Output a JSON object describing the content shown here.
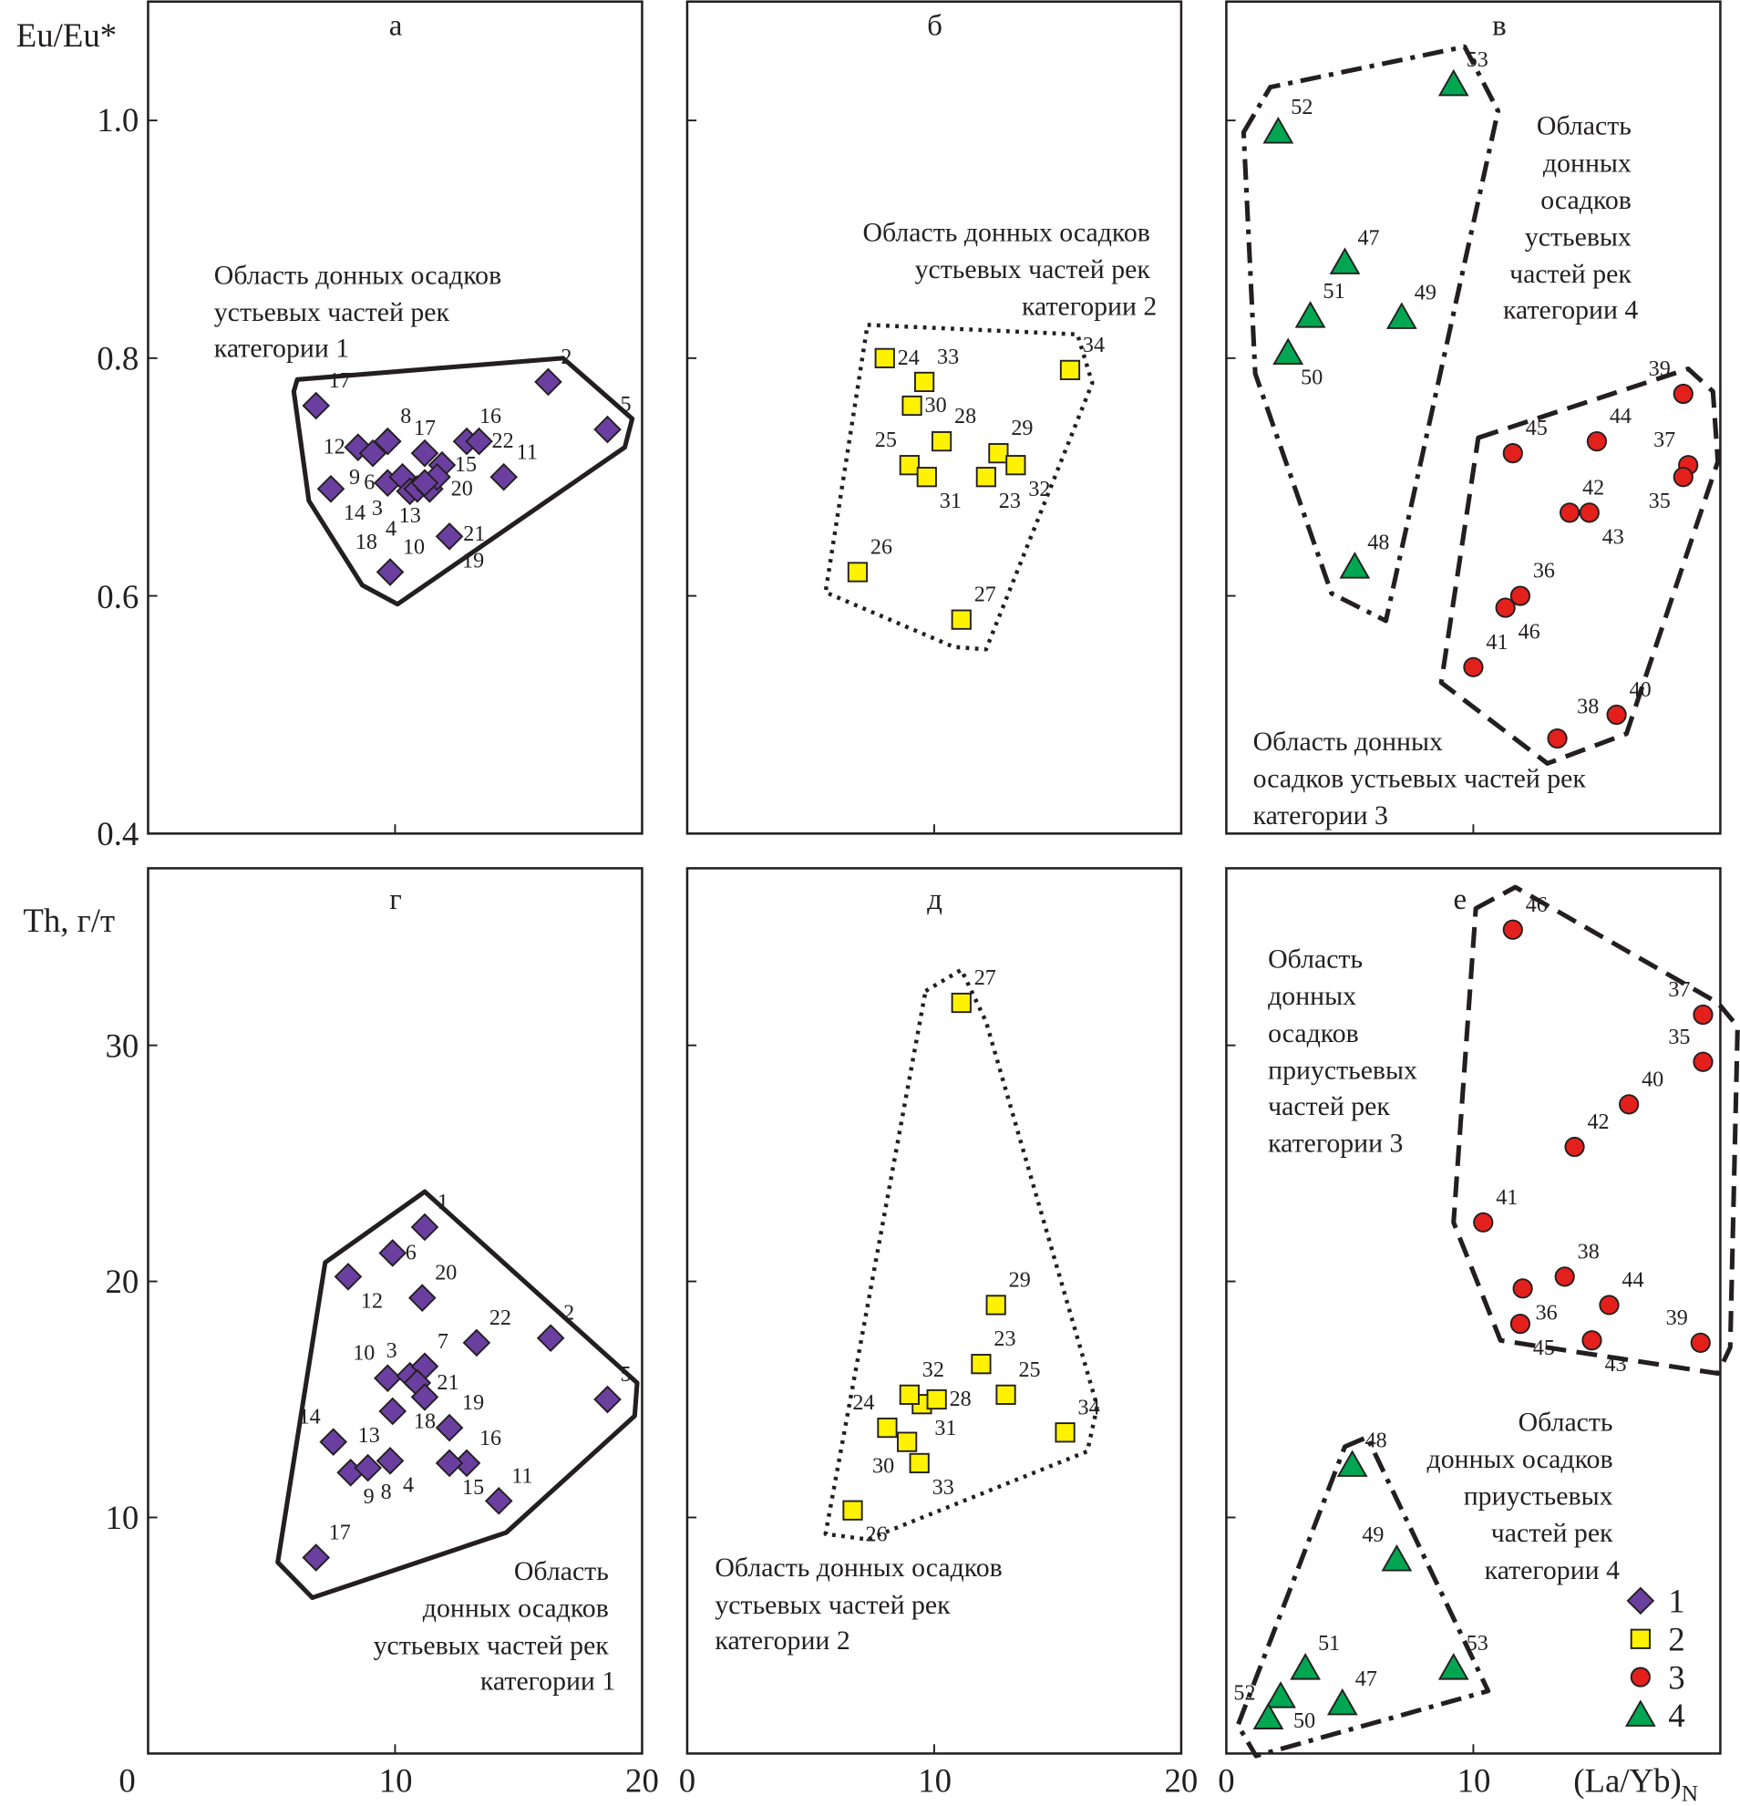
{
  "colors": {
    "cat1": "#6b3fa0",
    "cat2": "#fff200",
    "cat3": "#e3201b",
    "cat4": "#00a651",
    "outline": "#231f20"
  },
  "axes": {
    "y_top_label": "Eu/Eu*",
    "y_bottom_label": "Th, г/т",
    "x_label_main": "(La/Yb)",
    "x_label_sub": "N",
    "y_top_ticks": [
      "1.0",
      "0.8",
      "0.6",
      "0.4"
    ],
    "y_bottom_ticks": [
      "30",
      "20",
      "10"
    ],
    "x_ticks": [
      "0",
      "10",
      "20",
      "0",
      "10",
      "20",
      "0",
      "10"
    ]
  },
  "legend": [
    {
      "label": "1",
      "marker": "diamond",
      "color": "#6b3fa0"
    },
    {
      "label": "2",
      "marker": "square",
      "color": "#fff200"
    },
    {
      "label": "3",
      "marker": "circle",
      "color": "#e3201b"
    },
    {
      "label": "4",
      "marker": "triangle",
      "color": "#00a651"
    }
  ],
  "annotations": {
    "a": [
      "Область донных осадков",
      "устьевых частей рек",
      "категории 1"
    ],
    "b": [
      "Область донных осадков",
      "устьевых частей рек",
      "категории 2"
    ],
    "v_top": [
      "Область",
      "донных",
      "осадков",
      "устьевых",
      "частей рек",
      "категории 4"
    ],
    "v_bottom": [
      "Область донных",
      "осадков устьевых частей рек",
      "категории 3"
    ],
    "g": [
      "Область",
      "донных осадков",
      "устьевых частей рек",
      "категории 1"
    ],
    "d": [
      "Область донных осадков",
      "устьевых частей рек",
      "категории 2"
    ],
    "e_top": [
      "Область",
      "донных",
      "осадков",
      "приустьевых",
      "частей рек",
      "категории 3"
    ],
    "e_bottom": [
      "Область",
      "донных осадков",
      "приустьевых",
      "частей рек",
      "категории 4"
    ]
  },
  "chart_data": [
    {
      "type": "scatter",
      "panel": "а",
      "xlabel": "(La/Yb)N",
      "ylabel": "Eu/Eu*",
      "xlim": [
        0,
        20
      ],
      "ylim": [
        0.4,
        1.1
      ],
      "series": [
        {
          "name": "1",
          "marker": "diamond",
          "points": [
            {
              "id": "17",
              "x": 6.8,
              "y": 0.76
            },
            {
              "id": "2",
              "x": 16.2,
              "y": 0.78
            },
            {
              "id": "5",
              "x": 18.6,
              "y": 0.74
            },
            {
              "id": "12",
              "x": 8.5,
              "y": 0.725
            },
            {
              "id": "9",
              "x": 9.1,
              "y": 0.72
            },
            {
              "id": "8",
              "x": 9.7,
              "y": 0.73
            },
            {
              "id": "14",
              "x": 7.4,
              "y": 0.69
            },
            {
              "id": "6",
              "x": 9.7,
              "y": 0.695
            },
            {
              "id": "3",
              "x": 10.3,
              "y": 0.7
            },
            {
              "id": "13",
              "x": 10.6,
              "y": 0.688
            },
            {
              "id": "20",
              "x": 10.9,
              "y": 0.69
            },
            {
              "id": "21",
              "x": 11.4,
              "y": 0.69
            },
            {
              "id": "17",
              "x": 11.2,
              "y": 0.72
            },
            {
              "id": "15",
              "x": 11.9,
              "y": 0.71
            },
            {
              "id": "16",
              "x": 12.9,
              "y": 0.73
            },
            {
              "id": "22",
              "x": 13.4,
              "y": 0.73
            },
            {
              "id": "4",
              "x": 11.7,
              "y": 0.7
            },
            {
              "id": "18",
              "x": 11.2,
              "y": 0.695
            },
            {
              "id": "11",
              "x": 14.4,
              "y": 0.7
            },
            {
              "id": "19",
              "x": 12.2,
              "y": 0.65
            },
            {
              "id": "10",
              "x": 9.8,
              "y": 0.62
            }
          ]
        }
      ],
      "regions": [
        {
          "name": "category 1",
          "style": "solid",
          "points": [
            [
              6.04,
              0.782
            ],
            [
              16.8,
              0.8
            ],
            [
              19.6,
              0.749
            ],
            [
              19.3,
              0.725
            ],
            [
              10.1,
              0.593
            ],
            [
              8.67,
              0.609
            ],
            [
              6.51,
              0.68
            ],
            [
              5.9,
              0.772
            ]
          ]
        }
      ]
    },
    {
      "type": "scatter",
      "panel": "б",
      "xlim": [
        0,
        20
      ],
      "ylim": [
        0.4,
        1.1
      ],
      "series": [
        {
          "name": "2",
          "marker": "square",
          "points": [
            {
              "id": "24",
              "x": 8.0,
              "y": 0.8
            },
            {
              "id": "33",
              "x": 9.6,
              "y": 0.78
            },
            {
              "id": "30",
              "x": 9.1,
              "y": 0.76
            },
            {
              "id": "28",
              "x": 10.3,
              "y": 0.73
            },
            {
              "id": "29",
              "x": 12.6,
              "y": 0.72
            },
            {
              "id": "32",
              "x": 13.3,
              "y": 0.71
            },
            {
              "id": "34",
              "x": 15.5,
              "y": 0.79
            },
            {
              "id": "25",
              "x": 9.0,
              "y": 0.71
            },
            {
              "id": "31",
              "x": 9.7,
              "y": 0.7
            },
            {
              "id": "23",
              "x": 12.1,
              "y": 0.7
            },
            {
              "id": "26",
              "x": 6.9,
              "y": 0.62
            },
            {
              "id": "27",
              "x": 11.1,
              "y": 0.58
            }
          ]
        }
      ],
      "regions": [
        {
          "name": "category 2",
          "style": "dotted",
          "points": [
            [
              7.3,
              0.828
            ],
            [
              15.8,
              0.82
            ],
            [
              16.4,
              0.779
            ],
            [
              12.1,
              0.555
            ],
            [
              10.8,
              0.557
            ],
            [
              5.6,
              0.603
            ]
          ]
        }
      ]
    },
    {
      "type": "scatter",
      "panel": "в",
      "xlim": [
        0,
        20
      ],
      "ylim": [
        0.4,
        1.1
      ],
      "series": [
        {
          "name": "4",
          "marker": "triangle",
          "points": [
            {
              "id": "52",
              "x": 2.1,
              "y": 0.99
            },
            {
              "id": "53",
              "x": 9.2,
              "y": 1.03
            },
            {
              "id": "47",
              "x": 4.8,
              "y": 0.88
            },
            {
              "id": "51",
              "x": 3.4,
              "y": 0.835
            },
            {
              "id": "49",
              "x": 7.1,
              "y": 0.834
            },
            {
              "id": "50",
              "x": 2.5,
              "y": 0.804
            },
            {
              "id": "48",
              "x": 5.2,
              "y": 0.624
            }
          ]
        },
        {
          "name": "3",
          "marker": "circle",
          "points": [
            {
              "id": "39",
              "x": 18.5,
              "y": 0.77
            },
            {
              "id": "44",
              "x": 15.0,
              "y": 0.73
            },
            {
              "id": "45",
              "x": 11.6,
              "y": 0.72
            },
            {
              "id": "37",
              "x": 18.7,
              "y": 0.71
            },
            {
              "id": "35",
              "x": 18.5,
              "y": 0.7
            },
            {
              "id": "42",
              "x": 13.9,
              "y": 0.67
            },
            {
              "id": "43",
              "x": 14.7,
              "y": 0.67
            },
            {
              "id": "36",
              "x": 11.9,
              "y": 0.6
            },
            {
              "id": "46",
              "x": 11.3,
              "y": 0.59
            },
            {
              "id": "41",
              "x": 10.0,
              "y": 0.54
            },
            {
              "id": "40",
              "x": 15.8,
              "y": 0.5
            },
            {
              "id": "38",
              "x": 13.4,
              "y": 0.48
            }
          ]
        }
      ],
      "regions": [
        {
          "name": "category 4",
          "style": "dashdot",
          "points": [
            [
              0.7,
              0.99
            ],
            [
              1.78,
              1.028
            ],
            [
              9.65,
              1.062
            ],
            [
              11.0,
              1.008
            ],
            [
              6.46,
              0.579
            ],
            [
              4.26,
              0.602
            ],
            [
              1.17,
              0.787
            ]
          ]
        },
        {
          "name": "category 3",
          "style": "dashed",
          "points": [
            [
              10.2,
              0.733
            ],
            [
              18.7,
              0.791
            ],
            [
              19.7,
              0.772
            ],
            [
              19.9,
              0.713
            ],
            [
              16.2,
              0.484
            ],
            [
              13.0,
              0.459
            ],
            [
              8.7,
              0.527
            ]
          ]
        }
      ]
    },
    {
      "type": "scatter",
      "panel": "г",
      "xlabel": "(La/Yb)N",
      "ylabel": "Th, г/т",
      "xlim": [
        0,
        20
      ],
      "ylim": [
        0,
        37.5
      ],
      "series": [
        {
          "name": "1",
          "marker": "diamond",
          "points": [
            {
              "id": "1",
              "x": 11.2,
              "y": 22.3
            },
            {
              "id": "6",
              "x": 9.9,
              "y": 21.2
            },
            {
              "id": "12",
              "x": 8.1,
              "y": 20.2
            },
            {
              "id": "20",
              "x": 11.1,
              "y": 19.3
            },
            {
              "id": "22",
              "x": 13.3,
              "y": 17.4
            },
            {
              "id": "2",
              "x": 16.3,
              "y": 17.6
            },
            {
              "id": "5",
              "x": 18.6,
              "y": 15.0
            },
            {
              "id": "10",
              "x": 9.7,
              "y": 15.9
            },
            {
              "id": "3",
              "x": 10.6,
              "y": 16.0
            },
            {
              "id": "7",
              "x": 11.2,
              "y": 16.4
            },
            {
              "id": "21",
              "x": 10.9,
              "y": 15.7
            },
            {
              "id": "18",
              "x": 11.2,
              "y": 15.1
            },
            {
              "id": "13",
              "x": 9.9,
              "y": 14.5
            },
            {
              "id": "19",
              "x": 12.2,
              "y": 13.8
            },
            {
              "id": "14",
              "x": 7.5,
              "y": 13.2
            },
            {
              "id": "4",
              "x": 9.8,
              "y": 12.4
            },
            {
              "id": "16",
              "x": 12.9,
              "y": 12.3
            },
            {
              "id": "15",
              "x": 12.2,
              "y": 12.3
            },
            {
              "id": "9",
              "x": 8.2,
              "y": 11.9
            },
            {
              "id": "8",
              "x": 8.9,
              "y": 12.1
            },
            {
              "id": "11",
              "x": 14.2,
              "y": 10.7
            },
            {
              "id": "17",
              "x": 6.8,
              "y": 8.3
            }
          ]
        }
      ],
      "regions": [
        {
          "name": "category 1",
          "style": "solid",
          "points": [
            [
              7.17,
              20.8
            ],
            [
              11.2,
              23.8
            ],
            [
              19.8,
              15.7
            ],
            [
              19.7,
              14.3
            ],
            [
              14.5,
              9.36
            ],
            [
              6.65,
              6.6
            ],
            [
              5.25,
              8.1
            ]
          ]
        }
      ]
    },
    {
      "type": "scatter",
      "panel": "д",
      "xlim": [
        0,
        20
      ],
      "ylim": [
        0,
        37.5
      ],
      "series": [
        {
          "name": "2",
          "marker": "square",
          "points": [
            {
              "id": "27",
              "x": 11.1,
              "y": 31.8
            },
            {
              "id": "29",
              "x": 12.5,
              "y": 19.0
            },
            {
              "id": "23",
              "x": 11.9,
              "y": 16.5
            },
            {
              "id": "25",
              "x": 12.9,
              "y": 15.2
            },
            {
              "id": "34",
              "x": 15.3,
              "y": 13.6
            },
            {
              "id": "31",
              "x": 9.5,
              "y": 14.8
            },
            {
              "id": "32",
              "x": 9.0,
              "y": 15.2
            },
            {
              "id": "28",
              "x": 10.1,
              "y": 15.0
            },
            {
              "id": "24",
              "x": 8.1,
              "y": 13.8
            },
            {
              "id": "30",
              "x": 8.9,
              "y": 13.2
            },
            {
              "id": "33",
              "x": 9.4,
              "y": 12.3
            },
            {
              "id": "26",
              "x": 6.7,
              "y": 10.3
            }
          ]
        }
      ],
      "regions": [
        {
          "name": "category 2",
          "style": "dotted",
          "points": [
            [
              9.65,
              32.3
            ],
            [
              11.1,
              33.2
            ],
            [
              12.1,
              31.0
            ],
            [
              16.6,
              14.7
            ],
            [
              16.2,
              12.8
            ],
            [
              7.3,
              9.07
            ],
            [
              5.6,
              9.3
            ]
          ]
        }
      ]
    },
    {
      "type": "scatter",
      "panel": "е",
      "xlim": [
        0,
        20
      ],
      "ylim": [
        0,
        37.5
      ],
      "series": [
        {
          "name": "3",
          "marker": "circle",
          "points": [
            {
              "id": "46",
              "x": 11.6,
              "y": 34.9
            },
            {
              "id": "37",
              "x": 19.3,
              "y": 31.3
            },
            {
              "id": "35",
              "x": 19.3,
              "y": 29.3
            },
            {
              "id": "40",
              "x": 16.3,
              "y": 27.5
            },
            {
              "id": "42",
              "x": 14.1,
              "y": 25.7
            },
            {
              "id": "41",
              "x": 10.4,
              "y": 22.5
            },
            {
              "id": "36",
              "x": 12.0,
              "y": 19.7
            },
            {
              "id": "38",
              "x": 13.7,
              "y": 20.2
            },
            {
              "id": "44",
              "x": 15.5,
              "y": 19.0
            },
            {
              "id": "45",
              "x": 11.9,
              "y": 18.2
            },
            {
              "id": "43",
              "x": 14.8,
              "y": 17.5
            },
            {
              "id": "39",
              "x": 19.2,
              "y": 17.4
            }
          ]
        },
        {
          "name": "4",
          "marker": "triangle",
          "points": [
            {
              "id": "48",
              "x": 5.1,
              "y": 12.2
            },
            {
              "id": "49",
              "x": 6.9,
              "y": 8.2
            },
            {
              "id": "51",
              "x": 3.2,
              "y": 3.6
            },
            {
              "id": "53",
              "x": 9.2,
              "y": 3.6
            },
            {
              "id": "50",
              "x": 2.2,
              "y": 2.4
            },
            {
              "id": "47",
              "x": 4.7,
              "y": 2.1
            },
            {
              "id": "52",
              "x": 1.7,
              "y": 1.5
            }
          ]
        }
      ],
      "regions": [
        {
          "name": "category 3",
          "style": "dashed",
          "points": [
            [
              10.1,
              35.8
            ],
            [
              11.7,
              36.7
            ],
            [
              19.9,
              31.8
            ],
            [
              20.7,
              30.8
            ],
            [
              20.4,
              17.2
            ],
            [
              19.9,
              16.1
            ],
            [
              11.1,
              17.5
            ],
            [
              9.2,
              22.5
            ]
          ]
        },
        {
          "name": "category 4",
          "style": "dashdot",
          "points": [
            [
              4.8,
              13.0
            ],
            [
              5.7,
              13.4
            ],
            [
              10.6,
              2.65
            ],
            [
              1.2,
              -0.1
            ],
            [
              0.47,
              1.2
            ]
          ]
        }
      ]
    }
  ]
}
